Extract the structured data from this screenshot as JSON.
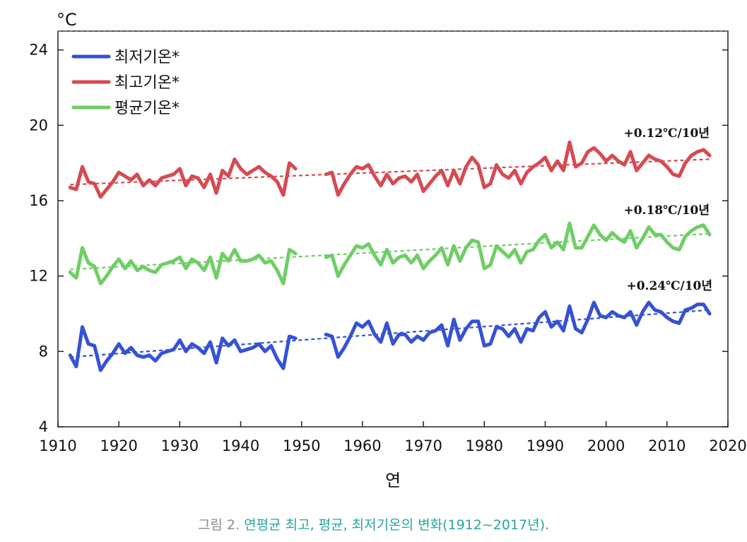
{
  "chart_data": {
    "type": "line",
    "unit_label": "°C",
    "xlabel": "연",
    "xlim": [
      1910,
      2020
    ],
    "ylim": [
      4,
      25
    ],
    "x_ticks": [
      1910,
      1920,
      1930,
      1940,
      1950,
      1960,
      1970,
      1980,
      1990,
      2000,
      2010,
      2020
    ],
    "y_ticks": [
      4,
      8,
      12,
      16,
      20,
      24
    ],
    "legend_position": "top-left",
    "series": [
      {
        "name": "최저기온*",
        "color": "#3552d6",
        "segments": [
          {
            "x": [
              1912,
              1913,
              1914,
              1915,
              1916,
              1917,
              1918,
              1919,
              1920,
              1921,
              1922,
              1923,
              1924,
              1925,
              1926,
              1927,
              1928,
              1929,
              1930,
              1931,
              1932,
              1933,
              1934,
              1935,
              1936,
              1937,
              1938,
              1939,
              1940,
              1941,
              1942,
              1943,
              1944,
              1945,
              1946,
              1947,
              1948,
              1949
            ],
            "y": [
              7.8,
              7.2,
              9.3,
              8.4,
              8.3,
              7.0,
              7.5,
              7.9,
              8.4,
              7.9,
              8.2,
              7.8,
              7.7,
              7.8,
              7.5,
              7.9,
              8.0,
              8.1,
              8.6,
              8.0,
              8.4,
              8.2,
              7.9,
              8.5,
              7.4,
              8.7,
              8.3,
              8.6,
              8.0,
              8.1,
              8.2,
              8.4,
              8.0,
              8.3,
              7.6,
              7.1,
              8.8,
              8.7
            ]
          },
          {
            "x": [
              1954,
              1955,
              1956,
              1957,
              1958,
              1959,
              1960,
              1961,
              1962,
              1963,
              1964,
              1965,
              1966,
              1967,
              1968,
              1969,
              1970,
              1971,
              1972,
              1973,
              1974,
              1975,
              1976,
              1977,
              1978,
              1979,
              1980,
              1981,
              1982,
              1983,
              1984,
              1985,
              1986,
              1987,
              1988,
              1989,
              1990,
              1991,
              1992,
              1993,
              1994,
              1995,
              1996,
              1997,
              1998,
              1999,
              2000,
              2001,
              2002,
              2003,
              2004,
              2005,
              2006,
              2007,
              2008,
              2009,
              2010,
              2011,
              2012,
              2013,
              2014,
              2015,
              2016,
              2017
            ],
            "y": [
              8.9,
              8.8,
              7.7,
              8.2,
              8.8,
              9.5,
              9.3,
              9.6,
              8.9,
              8.5,
              9.5,
              8.4,
              8.9,
              8.9,
              8.5,
              8.8,
              8.6,
              9.0,
              9.1,
              9.4,
              8.3,
              9.7,
              8.6,
              9.2,
              9.6,
              9.6,
              8.3,
              8.4,
              9.3,
              9.2,
              8.8,
              9.2,
              8.5,
              9.2,
              9.1,
              9.8,
              10.1,
              9.3,
              9.6,
              9.1,
              10.4,
              9.2,
              9.0,
              9.7,
              10.6,
              9.9,
              9.8,
              10.1,
              9.9,
              9.8,
              10.1,
              9.4,
              10.1,
              10.6,
              10.2,
              10.1,
              9.8,
              9.6,
              9.5,
              10.2,
              10.3,
              10.5,
              10.5,
              10.0
            ]
          }
        ]
      },
      {
        "name": "최고기온*",
        "color": "#d64a52",
        "segments": [
          {
            "x": [
              1912,
              1913,
              1914,
              1915,
              1916,
              1917,
              1918,
              1919,
              1920,
              1921,
              1922,
              1923,
              1924,
              1925,
              1926,
              1927,
              1928,
              1929,
              1930,
              1931,
              1932,
              1933,
              1934,
              1935,
              1936,
              1937,
              1938,
              1939,
              1940,
              1941,
              1942,
              1943,
              1944,
              1945,
              1946,
              1947,
              1948,
              1949
            ],
            "y": [
              16.7,
              16.6,
              17.8,
              17.0,
              16.9,
              16.2,
              16.6,
              17.0,
              17.5,
              17.3,
              17.1,
              17.4,
              16.8,
              17.1,
              16.8,
              17.2,
              17.3,
              17.4,
              17.7,
              16.8,
              17.3,
              17.2,
              16.7,
              17.4,
              16.4,
              17.6,
              17.3,
              18.2,
              17.7,
              17.4,
              17.6,
              17.8,
              17.5,
              17.3,
              17.0,
              16.3,
              18.0,
              17.7
            ]
          },
          {
            "x": [
              1954,
              1955,
              1956,
              1957,
              1958,
              1959,
              1960,
              1961,
              1962,
              1963,
              1964,
              1965,
              1966,
              1967,
              1968,
              1969,
              1970,
              1971,
              1972,
              1973,
              1974,
              1975,
              1976,
              1977,
              1978,
              1979,
              1980,
              1981,
              1982,
              1983,
              1984,
              1985,
              1986,
              1987,
              1988,
              1989,
              1990,
              1991,
              1992,
              1993,
              1994,
              1995,
              1996,
              1997,
              1998,
              1999,
              2000,
              2001,
              2002,
              2003,
              2004,
              2005,
              2006,
              2007,
              2008,
              2009,
              2010,
              2011,
              2012,
              2013,
              2014,
              2015,
              2016,
              2017
            ],
            "y": [
              17.4,
              17.5,
              16.3,
              16.9,
              17.4,
              17.8,
              17.7,
              17.9,
              17.3,
              16.8,
              17.4,
              16.9,
              17.2,
              17.3,
              17.0,
              17.4,
              16.5,
              16.9,
              17.3,
              17.6,
              16.8,
              17.6,
              16.9,
              17.8,
              18.3,
              17.9,
              16.7,
              16.9,
              17.9,
              17.4,
              17.2,
              17.6,
              16.9,
              17.5,
              17.8,
              18.0,
              18.3,
              17.6,
              18.1,
              17.6,
              19.1,
              17.8,
              18.0,
              18.6,
              18.8,
              18.5,
              18.1,
              18.4,
              18.1,
              17.9,
              18.6,
              17.6,
              18.0,
              18.4,
              18.2,
              18.1,
              17.8,
              17.4,
              17.3,
              18.0,
              18.4,
              18.6,
              18.7,
              18.4
            ]
          }
        ]
      },
      {
        "name": "평균기온*",
        "color": "#6fce65",
        "segments": [
          {
            "x": [
              1912,
              1913,
              1914,
              1915,
              1916,
              1917,
              1918,
              1919,
              1920,
              1921,
              1922,
              1923,
              1924,
              1925,
              1926,
              1927,
              1928,
              1929,
              1930,
              1931,
              1932,
              1933,
              1934,
              1935,
              1936,
              1937,
              1938,
              1939,
              1940,
              1941,
              1942,
              1943,
              1944,
              1945,
              1946,
              1947,
              1948,
              1949
            ],
            "y": [
              12.2,
              11.9,
              13.5,
              12.7,
              12.5,
              11.6,
              12.0,
              12.5,
              12.9,
              12.4,
              12.8,
              12.3,
              12.5,
              12.3,
              12.2,
              12.6,
              12.7,
              12.8,
              13.0,
              12.4,
              12.9,
              12.7,
              12.3,
              13.0,
              11.9,
              13.2,
              12.8,
              13.4,
              12.8,
              12.8,
              12.9,
              13.1,
              12.7,
              12.8,
              12.3,
              11.6,
              13.4,
              13.2
            ]
          },
          {
            "x": [
              1954,
              1955,
              1956,
              1957,
              1958,
              1959,
              1960,
              1961,
              1962,
              1963,
              1964,
              1965,
              1966,
              1967,
              1968,
              1969,
              1970,
              1971,
              1972,
              1973,
              1974,
              1975,
              1976,
              1977,
              1978,
              1979,
              1980,
              1981,
              1982,
              1983,
              1984,
              1985,
              1986,
              1987,
              1988,
              1989,
              1990,
              1991,
              1992,
              1993,
              1994,
              1995,
              1996,
              1997,
              1998,
              1999,
              2000,
              2001,
              2002,
              2003,
              2004,
              2005,
              2006,
              2007,
              2008,
              2009,
              2010,
              2011,
              2012,
              2013,
              2014,
              2015,
              2016,
              2017
            ],
            "y": [
              13.0,
              13.1,
              12.0,
              12.6,
              13.1,
              13.6,
              13.5,
              13.7,
              13.1,
              12.6,
              13.4,
              12.7,
              13.0,
              13.1,
              12.7,
              13.1,
              12.4,
              12.8,
              13.1,
              13.5,
              12.6,
              13.6,
              12.8,
              13.5,
              13.9,
              13.8,
              12.4,
              12.6,
              13.6,
              13.3,
              13.0,
              13.4,
              12.7,
              13.3,
              13.4,
              13.9,
              14.2,
              13.5,
              13.8,
              13.4,
              14.8,
              13.5,
              13.5,
              14.1,
              14.7,
              14.2,
              13.9,
              14.3,
              14.0,
              13.8,
              14.4,
              13.5,
              14.0,
              14.6,
              14.2,
              14.2,
              13.8,
              13.5,
              13.4,
              14.1,
              14.4,
              14.6,
              14.7,
              14.2
            ]
          }
        ]
      }
    ],
    "trends": [
      {
        "series": "최고기온*",
        "start": [
          1912,
          16.85
        ],
        "end": [
          2017,
          18.2
        ],
        "label": "+0.12℃/10년"
      },
      {
        "series": "평균기온*",
        "start": [
          1912,
          12.35
        ],
        "end": [
          2017,
          14.25
        ],
        "label": "+0.18℃/10년"
      },
      {
        "series": "최저기온*",
        "start": [
          1912,
          7.7
        ],
        "end": [
          2017,
          10.2
        ],
        "label": "+0.24℃/10년"
      }
    ]
  },
  "caption": {
    "prefix": "그림 2.",
    "text": "연평균 최고, 평균, 최저기온의 변화(1912~2017년)."
  }
}
